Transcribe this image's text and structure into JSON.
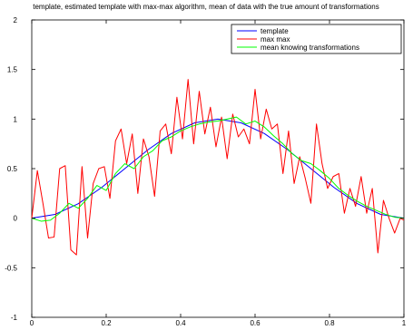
{
  "chart_data": {
    "type": "line",
    "title": "template, estimated template with max-max algorithm, mean of data with the true amount of transformations",
    "xlabel": "",
    "ylabel": "",
    "xlim": [
      0,
      1
    ],
    "ylim": [
      -1,
      2
    ],
    "xticks": [
      0,
      0.2,
      0.4,
      0.6,
      0.8,
      1
    ],
    "xtick_labels": [
      "0",
      "0.2",
      "0.4",
      "0.6",
      "0.8",
      "1"
    ],
    "yticks": [
      -1,
      -0.5,
      0,
      0.5,
      1,
      1.5,
      2
    ],
    "ytick_labels": [
      "-1",
      "-0.5",
      "0",
      "0.5",
      "1",
      "1.5",
      "2"
    ],
    "grid": false,
    "legend_position": "top-right",
    "series": [
      {
        "name": "template",
        "color": "#0000ff",
        "x": [
          0,
          0.0625,
          0.125,
          0.1875,
          0.25,
          0.3125,
          0.375,
          0.4375,
          0.5,
          0.5625,
          0.625,
          0.6875,
          0.75,
          0.8125,
          0.875,
          0.9375,
          1
        ],
        "y": [
          0,
          0.038,
          0.146,
          0.309,
          0.5,
          0.691,
          0.854,
          0.962,
          1.0,
          0.962,
          0.854,
          0.691,
          0.5,
          0.309,
          0.146,
          0.038,
          0
        ]
      },
      {
        "name": "max max",
        "color": "#ff0000",
        "x": [
          0,
          0.015,
          0.03,
          0.045,
          0.06,
          0.075,
          0.09,
          0.105,
          0.12,
          0.135,
          0.15,
          0.165,
          0.18,
          0.195,
          0.21,
          0.225,
          0.24,
          0.255,
          0.27,
          0.285,
          0.3,
          0.315,
          0.33,
          0.345,
          0.36,
          0.375,
          0.39,
          0.405,
          0.42,
          0.435,
          0.45,
          0.465,
          0.48,
          0.495,
          0.51,
          0.525,
          0.54,
          0.555,
          0.57,
          0.585,
          0.6,
          0.615,
          0.63,
          0.645,
          0.66,
          0.675,
          0.69,
          0.705,
          0.72,
          0.735,
          0.75,
          0.765,
          0.78,
          0.795,
          0.81,
          0.825,
          0.84,
          0.855,
          0.87,
          0.885,
          0.9,
          0.915,
          0.93,
          0.945,
          0.96,
          0.975,
          0.99,
          1.0
        ],
        "y": [
          0,
          0.48,
          0.15,
          -0.2,
          -0.19,
          0.5,
          0.53,
          -0.32,
          -0.37,
          0.52,
          -0.2,
          0.35,
          0.5,
          0.52,
          0.2,
          0.78,
          0.9,
          0.55,
          0.85,
          0.25,
          0.8,
          0.62,
          0.22,
          0.88,
          0.95,
          0.65,
          1.22,
          0.8,
          1.4,
          0.75,
          1.28,
          0.85,
          1.12,
          0.72,
          1.02,
          0.6,
          1.05,
          0.82,
          0.9,
          0.75,
          1.3,
          0.8,
          1.1,
          0.9,
          0.95,
          0.45,
          0.88,
          0.35,
          0.62,
          0.4,
          0.15,
          0.95,
          0.55,
          0.3,
          0.42,
          0.45,
          0.05,
          0.3,
          0.12,
          0.42,
          0.05,
          0.3,
          -0.35,
          0.18,
          0.0,
          -0.15,
          0.0,
          -0.02
        ]
      },
      {
        "name": "mean knowing transformations",
        "color": "#00ff00",
        "x": [
          0,
          0.025,
          0.05,
          0.075,
          0.1,
          0.125,
          0.15,
          0.175,
          0.2,
          0.225,
          0.25,
          0.275,
          0.3,
          0.325,
          0.35,
          0.375,
          0.4,
          0.425,
          0.45,
          0.475,
          0.5,
          0.525,
          0.55,
          0.575,
          0.6,
          0.625,
          0.65,
          0.675,
          0.7,
          0.725,
          0.75,
          0.775,
          0.8,
          0.825,
          0.85,
          0.875,
          0.9,
          0.925,
          0.95,
          0.975,
          1.0
        ],
        "y": [
          0.0,
          -0.03,
          -0.02,
          0.05,
          0.15,
          0.1,
          0.2,
          0.33,
          0.28,
          0.45,
          0.55,
          0.5,
          0.62,
          0.68,
          0.78,
          0.82,
          0.88,
          0.92,
          0.95,
          0.97,
          0.98,
          1.0,
          1.02,
          0.95,
          0.98,
          0.92,
          0.83,
          0.75,
          0.65,
          0.58,
          0.55,
          0.48,
          0.4,
          0.3,
          0.23,
          0.17,
          0.12,
          0.08,
          0.04,
          0.01,
          0.0
        ]
      }
    ]
  }
}
